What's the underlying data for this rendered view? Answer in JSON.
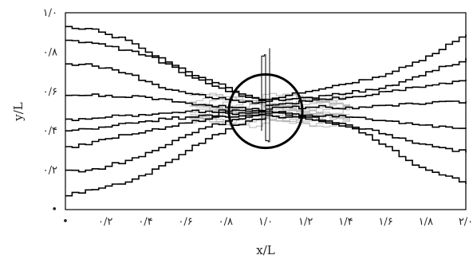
{
  "chart_data": {
    "type": "line",
    "xlabel": "x/L",
    "ylabel": "y/L",
    "xlim": [
      0,
      2.0
    ],
    "ylim": [
      0,
      1.0
    ],
    "x_ticks": [
      0,
      0.2,
      0.4,
      0.6,
      0.8,
      1.0,
      1.2,
      1.4,
      1.6,
      1.8,
      2.0
    ],
    "x_tick_labels": [
      "•",
      "۰/۲",
      "۰/۴",
      "۰/۶",
      "۰/۸",
      "۱/۰",
      "۱/۲",
      "۱/۴",
      "۱/۶",
      "۱/۸",
      "۲/۰"
    ],
    "y_ticks": [
      0,
      0.2,
      0.4,
      0.6,
      0.8,
      1.0
    ],
    "y_tick_labels": [
      "•",
      "۰/۲",
      "۰/۴",
      "۰/۶",
      "۰/۸",
      "۱/۰"
    ],
    "grid": false,
    "legend": "none",
    "line_color": "#000000",
    "cluster_color": "#b8b8b8",
    "circle": {
      "center": [
        1.0,
        0.5
      ],
      "radius": 0.18
    },
    "series": [
      {
        "x": [
          0,
          0.1,
          0.2,
          0.3,
          0.4,
          0.5,
          0.6,
          0.7,
          0.8,
          0.9,
          1.0
        ],
        "y": [
          0.93,
          0.92,
          0.89,
          0.86,
          0.8,
          0.75,
          0.68,
          0.64,
          0.6,
          0.57,
          0.55
        ]
      },
      {
        "x": [
          0,
          0.1,
          0.2,
          0.3,
          0.4,
          0.5,
          0.6,
          0.7,
          0.8,
          0.9,
          1.0
        ],
        "y": [
          0.86,
          0.85,
          0.83,
          0.81,
          0.78,
          0.74,
          0.7,
          0.66,
          0.62,
          0.58,
          0.55
        ]
      },
      {
        "x": [
          0,
          0.1,
          0.2,
          0.3,
          0.4,
          0.5,
          0.6,
          0.7,
          0.8,
          0.9,
          1.0
        ],
        "y": [
          0.74,
          0.74,
          0.72,
          0.69,
          0.65,
          0.61,
          0.59,
          0.57,
          0.56,
          0.55,
          0.54
        ]
      },
      {
        "x": [
          0,
          0.1,
          0.2,
          0.3,
          0.4,
          0.5,
          0.6,
          0.7,
          0.8,
          0.9,
          1.0
        ],
        "y": [
          0.58,
          0.58,
          0.58,
          0.57,
          0.57,
          0.56,
          0.54,
          0.53,
          0.52,
          0.51,
          0.5
        ]
      },
      {
        "x": [
          0,
          0.1,
          0.2,
          0.3,
          0.4,
          0.5,
          0.6,
          0.7,
          0.8,
          0.9,
          1.0
        ],
        "y": [
          0.46,
          0.46,
          0.47,
          0.48,
          0.48,
          0.49,
          0.5,
          0.5,
          0.5,
          0.5,
          0.5
        ]
      },
      {
        "x": [
          0,
          0.1,
          0.2,
          0.3,
          0.4,
          0.5,
          0.6,
          0.7,
          0.8,
          0.9,
          1.0
        ],
        "y": [
          0.4,
          0.41,
          0.42,
          0.44,
          0.45,
          0.46,
          0.47,
          0.48,
          0.49,
          0.49,
          0.5
        ]
      },
      {
        "x": [
          0,
          0.1,
          0.2,
          0.3,
          0.4,
          0.5,
          0.6,
          0.7,
          0.8,
          0.9,
          1.0
        ],
        "y": [
          0.32,
          0.33,
          0.36,
          0.38,
          0.4,
          0.42,
          0.44,
          0.46,
          0.47,
          0.48,
          0.49
        ]
      },
      {
        "x": [
          0,
          0.1,
          0.2,
          0.3,
          0.4,
          0.5,
          0.6,
          0.7,
          0.8,
          0.9,
          1.0
        ],
        "y": [
          0.2,
          0.2,
          0.22,
          0.25,
          0.29,
          0.33,
          0.38,
          0.42,
          0.45,
          0.47,
          0.48
        ]
      },
      {
        "x": [
          0,
          0.1,
          0.2,
          0.3,
          0.4,
          0.5,
          0.6,
          0.7,
          0.8,
          0.9,
          1.0
        ],
        "y": [
          0.07,
          0.1,
          0.12,
          0.14,
          0.18,
          0.24,
          0.3,
          0.36,
          0.41,
          0.45,
          0.47
        ]
      },
      {
        "x": [
          1.0,
          1.1,
          1.2,
          1.3,
          1.4,
          1.5,
          1.6,
          1.7,
          1.8,
          1.9,
          2.0
        ],
        "y": [
          0.56,
          0.58,
          0.6,
          0.62,
          0.64,
          0.66,
          0.69,
          0.73,
          0.78,
          0.84,
          0.89
        ]
      },
      {
        "x": [
          1.0,
          1.1,
          1.2,
          1.3,
          1.4,
          1.5,
          1.6,
          1.7,
          1.8,
          1.9,
          2.0
        ],
        "y": [
          0.55,
          0.56,
          0.57,
          0.58,
          0.59,
          0.61,
          0.63,
          0.66,
          0.7,
          0.73,
          0.77
        ]
      },
      {
        "x": [
          1.0,
          1.1,
          1.2,
          1.3,
          1.4,
          1.5,
          1.6,
          1.7,
          1.8,
          1.9,
          2.0
        ],
        "y": [
          0.53,
          0.54,
          0.55,
          0.56,
          0.57,
          0.58,
          0.6,
          0.62,
          0.63,
          0.64,
          0.66
        ]
      },
      {
        "x": [
          1.0,
          1.1,
          1.2,
          1.3,
          1.4,
          1.5,
          1.6,
          1.7,
          1.8,
          1.9,
          2.0
        ],
        "y": [
          0.51,
          0.52,
          0.52,
          0.52,
          0.52,
          0.52,
          0.53,
          0.54,
          0.54,
          0.55,
          0.55
        ]
      },
      {
        "x": [
          1.0,
          1.1,
          1.2,
          1.3,
          1.4,
          1.5,
          1.6,
          1.7,
          1.8,
          1.9,
          2.0
        ],
        "y": [
          0.5,
          0.49,
          0.48,
          0.48,
          0.47,
          0.46,
          0.45,
          0.44,
          0.43,
          0.42,
          0.41
        ]
      },
      {
        "x": [
          1.0,
          1.1,
          1.2,
          1.3,
          1.4,
          1.5,
          1.6,
          1.7,
          1.8,
          1.9,
          2.0
        ],
        "y": [
          0.49,
          0.48,
          0.47,
          0.45,
          0.43,
          0.41,
          0.38,
          0.35,
          0.33,
          0.31,
          0.29
        ]
      },
      {
        "x": [
          1.0,
          1.1,
          1.2,
          1.3,
          1.4,
          1.5,
          1.6,
          1.7,
          1.8,
          1.9,
          2.0
        ],
        "y": [
          0.48,
          0.47,
          0.46,
          0.44,
          0.42,
          0.38,
          0.32,
          0.25,
          0.2,
          0.17,
          0.13
        ]
      },
      {
        "x": [
          0.98,
          0.98,
          1.0,
          1.0,
          1.02,
          1.02
        ],
        "y": [
          0.4,
          0.78,
          0.78,
          0.35,
          0.35,
          0.82
        ]
      }
    ]
  }
}
